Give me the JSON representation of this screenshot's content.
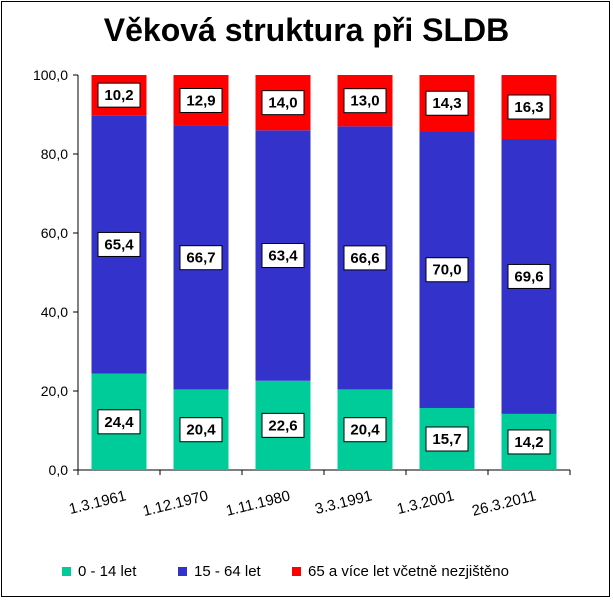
{
  "chart_data": {
    "type": "bar",
    "stacked": true,
    "title": "Věková struktura při SLDB",
    "categories": [
      "1.3.1961",
      "1.12.1970",
      "1.11.1980",
      "3.3.1991",
      "1.3.2001",
      "26.3.2011"
    ],
    "series": [
      {
        "name": "0 - 14 let",
        "color": "#00cc99",
        "values": [
          24.4,
          20.4,
          22.6,
          20.4,
          15.7,
          14.2
        ]
      },
      {
        "name": "15 - 64 let",
        "color": "#3333cc",
        "values": [
          65.4,
          66.7,
          63.4,
          66.6,
          70.0,
          69.6
        ]
      },
      {
        "name": "65 a více let  včetně nezjištěno",
        "color": "#ff0000",
        "values": [
          10.2,
          12.9,
          14.0,
          13.0,
          14.3,
          16.3
        ]
      }
    ],
    "data_labels": [
      [
        "24,4",
        "20,4",
        "22,6",
        "20,4",
        "15,7",
        "14,2"
      ],
      [
        "65,4",
        "66,7",
        "63,4",
        "66,6",
        "70,0",
        "69,6"
      ],
      [
        "10,2",
        "12,9",
        "14,0",
        "13,0",
        "14,3",
        "16,3"
      ]
    ],
    "yticks": [
      "0,0",
      "20,0",
      "40,0",
      "60,0",
      "80,0",
      "100,0"
    ],
    "ylim": [
      0,
      100
    ],
    "grid": false,
    "legend_position": "bottom"
  }
}
